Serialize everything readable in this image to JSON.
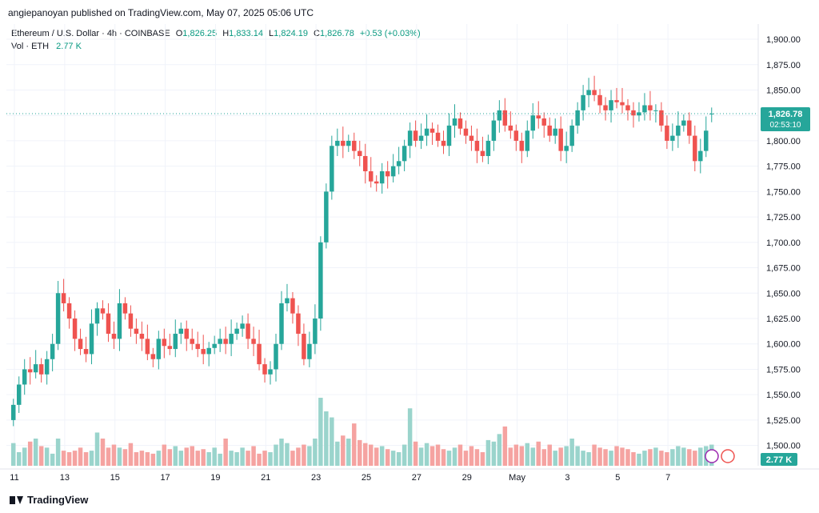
{
  "header": {
    "published_by": "angiepanoyan published on TradingView.com, May 07, 2025 05:06 UTC"
  },
  "legend": {
    "symbol": "Ethereum / U.S. Dollar · 4h · COINBASE",
    "open_label": "O",
    "open": "1,826.25",
    "high_label": "H",
    "high": "1,833.14",
    "low_label": "L",
    "low": "1,824.19",
    "close_label": "C",
    "close": "1,826.78",
    "change": "+0.53 (+0.03%)",
    "vol_label": "Vol · ETH",
    "vol_value": "2.77 K"
  },
  "price_tag": {
    "price": "1,826.78",
    "countdown": "02:53:10"
  },
  "volume_tag": "2.77 K",
  "footer": {
    "brand": "TradingView"
  },
  "colors": {
    "up": "#26a69a",
    "down": "#ef5350",
    "up_vol": "#9ad4cc",
    "down_vol": "#f5a3a1",
    "grid": "#f0f3fa",
    "text": "#131722"
  },
  "chart_data": {
    "type": "candlestick",
    "y_ticks": [
      "1,900.00",
      "1,875.00",
      "1,850.00",
      "1,825.00",
      "1,800.00",
      "1,775.00",
      "1,750.00",
      "1,725.00",
      "1,700.00",
      "1,675.00",
      "1,650.00",
      "1,625.00",
      "1,600.00",
      "1,575.00",
      "1,550.00",
      "1,525.00",
      "1,500.00"
    ],
    "y_tick_values": [
      1900,
      1875,
      1850,
      1825,
      1800,
      1775,
      1750,
      1725,
      1700,
      1675,
      1650,
      1625,
      1600,
      1575,
      1550,
      1525,
      1500
    ],
    "x_ticks": [
      "11",
      "13",
      "15",
      "17",
      "19",
      "21",
      "23",
      "25",
      "27",
      "29",
      "May",
      "3",
      "5",
      "7"
    ],
    "ylim": [
      1480,
      1915
    ],
    "last_close": 1826.78,
    "ohlc_close": [
      1540,
      1560,
      1575,
      1572,
      1580,
      1570,
      1585,
      1600,
      1650,
      1640,
      1625,
      1605,
      1595,
      1590,
      1620,
      1635,
      1630,
      1610,
      1605,
      1640,
      1630,
      1615,
      1610,
      1605,
      1590,
      1585,
      1605,
      1598,
      1595,
      1610,
      1615,
      1605,
      1600,
      1595,
      1590,
      1596,
      1600,
      1605,
      1600,
      1610,
      1615,
      1620,
      1605,
      1600,
      1580,
      1570,
      1575,
      1600,
      1640,
      1645,
      1630,
      1610,
      1585,
      1600,
      1625,
      1700,
      1750,
      1795,
      1800,
      1795,
      1800,
      1790,
      1785,
      1770,
      1760,
      1758,
      1770,
      1765,
      1775,
      1780,
      1795,
      1810,
      1800,
      1805,
      1812,
      1808,
      1800,
      1795,
      1815,
      1822,
      1812,
      1805,
      1800,
      1790,
      1785,
      1800,
      1820,
      1830,
      1815,
      1810,
      1800,
      1790,
      1810,
      1825,
      1822,
      1815,
      1805,
      1812,
      1790,
      1795,
      1815,
      1830,
      1845,
      1850,
      1845,
      1835,
      1830,
      1840,
      1838,
      1835,
      1830,
      1825,
      1828,
      1835,
      1830,
      1830,
      1815,
      1800,
      1805,
      1815,
      1820,
      1805,
      1780,
      1790,
      1810,
      1826.78
    ],
    "ohlc_open": [
      1525,
      1540,
      1560,
      1575,
      1572,
      1580,
      1570,
      1585,
      1600,
      1650,
      1640,
      1625,
      1605,
      1595,
      1590,
      1620,
      1635,
      1630,
      1610,
      1605,
      1640,
      1630,
      1615,
      1610,
      1605,
      1590,
      1585,
      1605,
      1598,
      1595,
      1610,
      1615,
      1605,
      1600,
      1595,
      1590,
      1596,
      1600,
      1605,
      1600,
      1610,
      1615,
      1620,
      1605,
      1600,
      1580,
      1570,
      1575,
      1600,
      1640,
      1645,
      1630,
      1610,
      1585,
      1600,
      1625,
      1700,
      1750,
      1795,
      1800,
      1795,
      1800,
      1790,
      1785,
      1770,
      1760,
      1758,
      1770,
      1765,
      1775,
      1780,
      1795,
      1810,
      1800,
      1805,
      1812,
      1808,
      1800,
      1795,
      1815,
      1822,
      1812,
      1805,
      1800,
      1790,
      1785,
      1800,
      1820,
      1830,
      1815,
      1810,
      1800,
      1790,
      1810,
      1825,
      1822,
      1815,
      1805,
      1812,
      1790,
      1795,
      1815,
      1830,
      1845,
      1850,
      1845,
      1835,
      1830,
      1840,
      1838,
      1835,
      1830,
      1825,
      1828,
      1835,
      1830,
      1830,
      1815,
      1800,
      1805,
      1815,
      1820,
      1805,
      1780,
      1790,
      1826.25
    ],
    "volume": [
      15,
      9,
      12,
      16,
      18,
      13,
      12,
      8,
      18,
      10,
      9,
      10,
      12,
      9,
      10,
      22,
      18,
      12,
      14,
      12,
      11,
      15,
      9,
      10,
      9,
      8,
      10,
      14,
      11,
      13,
      10,
      12,
      13,
      10,
      11,
      9,
      12,
      8,
      18,
      10,
      9,
      12,
      10,
      13,
      8,
      10,
      9,
      14,
      18,
      15,
      10,
      12,
      14,
      13,
      18,
      45,
      36,
      32,
      16,
      20,
      18,
      28,
      17,
      15,
      14,
      12,
      13,
      11,
      10,
      9,
      14,
      38,
      16,
      12,
      15,
      13,
      14,
      11,
      10,
      12,
      14,
      10,
      13,
      11,
      9,
      17,
      16,
      21,
      26,
      12,
      14,
      13,
      15,
      12,
      16,
      11,
      14,
      10,
      12,
      13,
      18,
      13,
      10,
      9,
      14,
      12,
      11,
      10,
      13,
      12,
      11,
      9,
      8,
      10,
      11,
      12,
      10,
      9,
      11,
      13,
      12,
      11,
      10,
      12,
      13,
      14
    ]
  }
}
